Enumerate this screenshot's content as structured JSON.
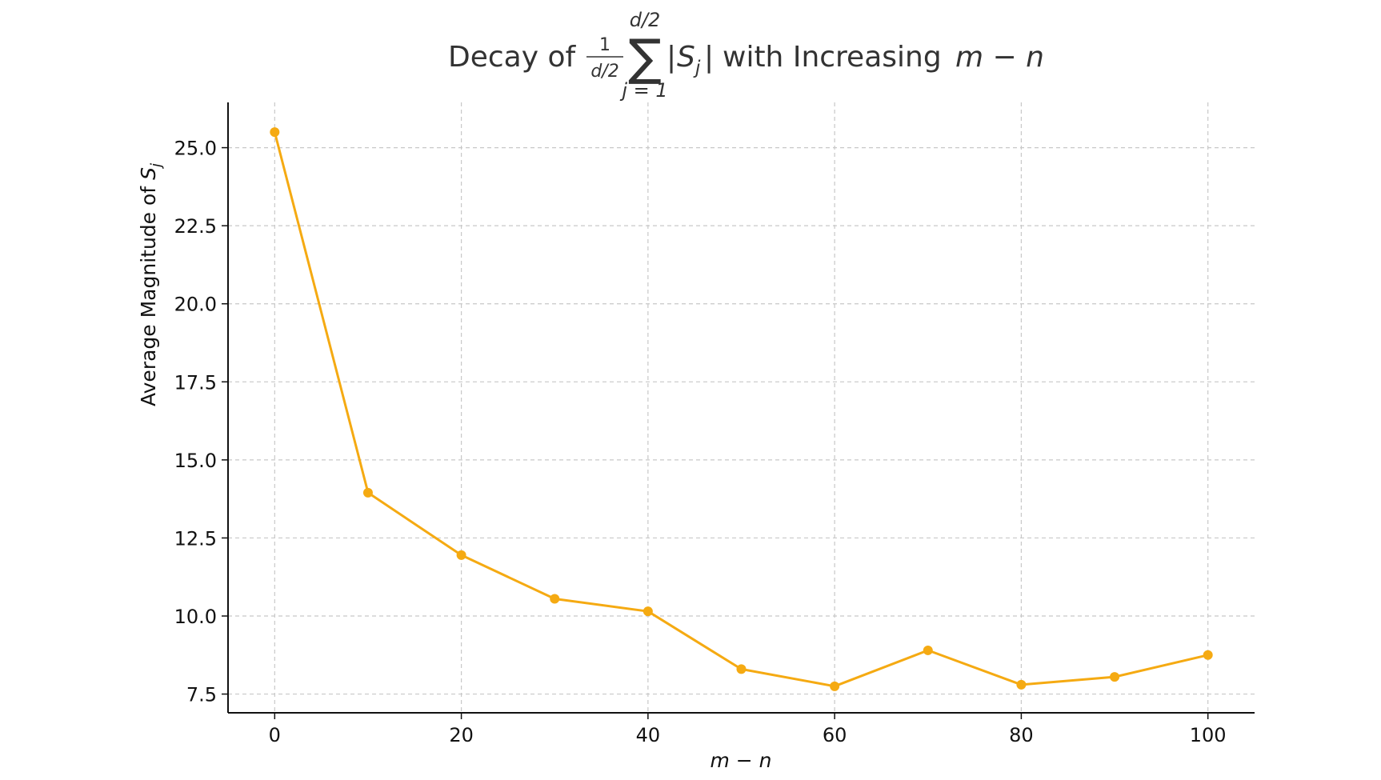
{
  "chart_data": {
    "type": "line",
    "title": {
      "prefix": "Decay of",
      "frac_num": "1",
      "frac_den": "d/2",
      "sum_symbol": "∑",
      "sum_upper": "d/2",
      "sum_lower": "j = 1",
      "abs_open": "|",
      "abs_var": "S",
      "abs_sub": "j",
      "abs_close": "|",
      "suffix": "with Increasing",
      "math_tail": "m − n"
    },
    "xlabel": "m − n",
    "ylabel": {
      "text": "Average Magnitude of",
      "var": "S",
      "sub": "j"
    },
    "x": [
      0,
      10,
      20,
      30,
      40,
      50,
      60,
      70,
      80,
      90,
      100
    ],
    "series": [
      {
        "values": [
          25.5,
          13.95,
          11.95,
          10.55,
          10.15,
          8.3,
          7.75,
          8.9,
          7.8,
          8.05,
          8.75
        ],
        "color": "#f5aa12"
      }
    ],
    "xlim": [
      -5,
      105
    ],
    "ylim": [
      6.9,
      26.45
    ],
    "xticks": [
      0,
      20,
      40,
      60,
      80,
      100
    ],
    "xtick_labels": [
      "0",
      "20",
      "40",
      "60",
      "80",
      "100"
    ],
    "yticks": [
      7.5,
      10.0,
      12.5,
      15.0,
      17.5,
      20.0,
      22.5,
      25.0
    ],
    "ytick_labels": [
      "7.5",
      "10.0",
      "12.5",
      "15.0",
      "17.5",
      "20.0",
      "22.5",
      "25.0"
    ],
    "grid": true,
    "grid_style": "dashed",
    "legend": "none"
  }
}
